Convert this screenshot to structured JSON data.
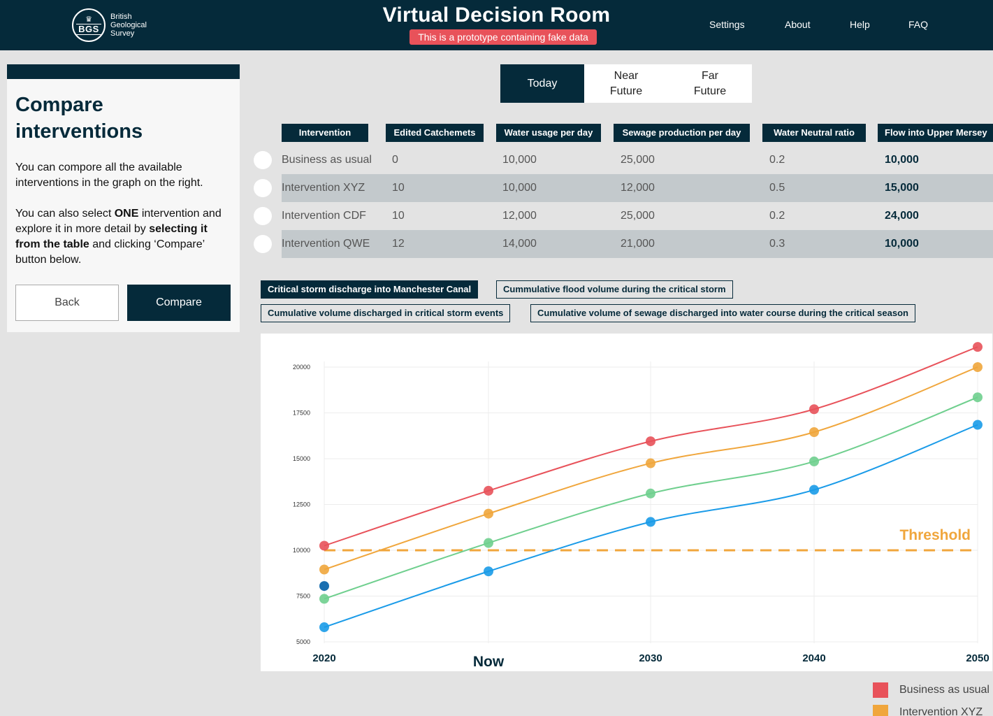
{
  "header": {
    "logo_text": [
      "British",
      "Geological",
      "Survey"
    ],
    "logo_abbr": "BGS",
    "title": "Virtual Decision Room",
    "prototype_notice": "This is a prototype containing fake data",
    "nav": [
      "Settings",
      "About",
      "Help",
      "FAQ"
    ]
  },
  "panel": {
    "title": "Compare interventions",
    "para1": "You can compore all the available interventions in the graph on the right.",
    "para2_a": "You can also select ",
    "para2_b": "ONE",
    "para2_c": " intervention and explore it in more detail by ",
    "para2_d": "selecting it from the table",
    "para2_e": " and clicking ‘Compare’ button below.",
    "back_label": "Back",
    "compare_label": "Compare"
  },
  "time_tabs": {
    "today": "Today",
    "near_future": "Near Future",
    "far_future": "Far Future"
  },
  "table": {
    "headers": [
      "Intervention",
      "Edited Catchemets",
      "Water usage per day",
      "Sewage production per day",
      "Water Neutral ratio",
      "Flow into Upper Mersey"
    ],
    "rows": [
      [
        "Business as usual",
        "0",
        "10,000",
        "25,000",
        "0.2",
        "10,000"
      ],
      [
        "Intervention XYZ",
        "10",
        "10,000",
        "12,000",
        "0.5",
        "15,000"
      ],
      [
        "Intervention CDF",
        "10",
        "12,000",
        "25,000",
        "0.2",
        "24,000"
      ],
      [
        "Intervention QWE",
        "12",
        "14,000",
        "21,000",
        "0.3",
        "10,000"
      ]
    ]
  },
  "metric_tabs": [
    "Critical storm discharge into Manchester Canal",
    "Cummulative flood volume during the critical storm",
    "Cumulative volume discharged in critical storm events",
    "Cumulative volume of sewage discharged into water course during the critical season"
  ],
  "chart_data": {
    "type": "line",
    "x": [
      2020,
      2025,
      2030,
      2040,
      2050
    ],
    "x_tick_labels": [
      "2020",
      "Now",
      "2030",
      "2040",
      "2050"
    ],
    "y_ticks": [
      5000,
      7500,
      10000,
      12500,
      15000,
      17500,
      20000
    ],
    "y_tick_labels": [
      "5000",
      "7500",
      "10000",
      "12500",
      "15000",
      "17500",
      "20000"
    ],
    "ylim": [
      5000,
      21000
    ],
    "threshold": 10000,
    "threshold_label": "Threshold",
    "series": [
      {
        "name": "Business as usual",
        "color": "#e8525a",
        "values": [
          10250,
          13250,
          15950,
          17700,
          21100
        ]
      },
      {
        "name": "Intervention XYZ",
        "color": "#f0a63c",
        "values": [
          8950,
          12000,
          14750,
          16450,
          20000
        ]
      },
      {
        "name": "Intervention CDF",
        "color": "#6fcf8e",
        "values": [
          7350,
          10400,
          13100,
          14850,
          18350
        ]
      },
      {
        "name": "Intervention QWE",
        "color": "#1a9be8",
        "values": [
          5800,
          8850,
          11550,
          13300,
          16850
        ]
      }
    ],
    "extra_point": {
      "x": 2020,
      "value": 8050,
      "color": "#1a6fb0"
    }
  },
  "legend": {
    "items": [
      {
        "label": "Business as usual",
        "color": "#e8525a"
      },
      {
        "label": "Intervention XYZ",
        "color": "#f0a63c"
      }
    ]
  }
}
